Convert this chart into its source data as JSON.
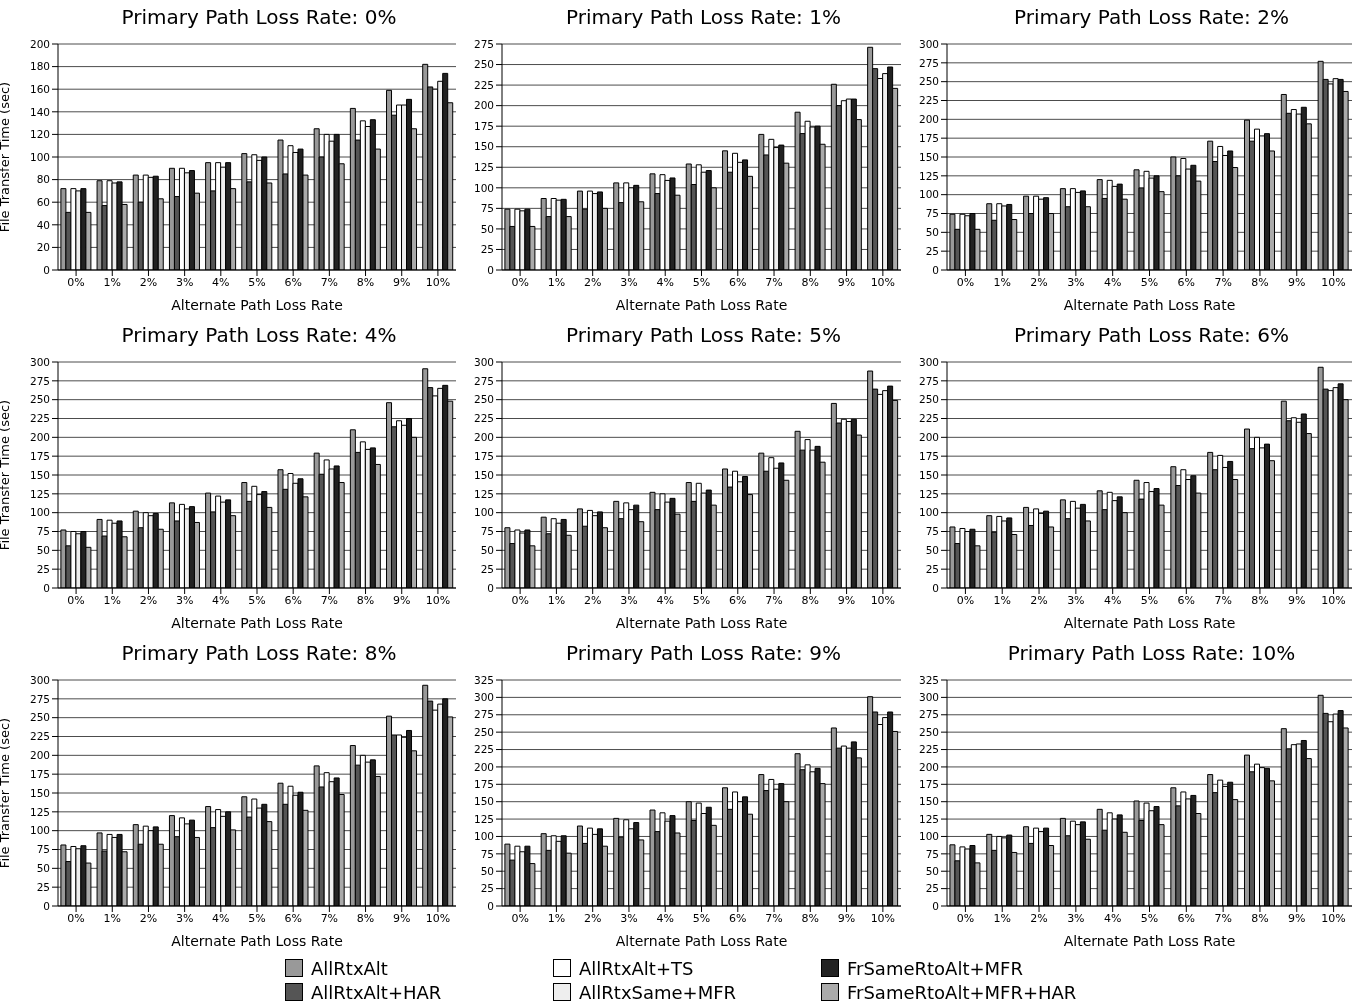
{
  "chart_data": [
    {
      "type": "bar",
      "title": "Primary Path Loss Rate: 0%",
      "xlabel": "Alternate Path Loss Rate",
      "ylabel": "File Transfer Time (sec)",
      "categories": [
        "0%",
        "1%",
        "2%",
        "3%",
        "4%",
        "5%",
        "6%",
        "7%",
        "8%",
        "9%",
        "10%"
      ],
      "ylim": [
        0,
        200
      ],
      "yticks": [
        0,
        20,
        40,
        60,
        80,
        100,
        120,
        140,
        160,
        180,
        200
      ],
      "grid": "y",
      "legend": "bottom",
      "series": [
        {
          "name": "AllRtxAlt",
          "color": "#999999",
          "values": [
            72,
            79,
            84,
            90,
            95,
            103,
            115,
            125,
            143,
            159,
            182
          ]
        },
        {
          "name": "AllRtxAlt+HAR",
          "color": "#555555",
          "values": [
            51,
            57,
            60,
            65,
            70,
            78,
            85,
            100,
            115,
            137,
            162
          ]
        },
        {
          "name": "AllRtxAlt+TS",
          "color": "#ffffff",
          "values": [
            72,
            79,
            84,
            90,
            95,
            102,
            110,
            120,
            132,
            146,
            160
          ]
        },
        {
          "name": "AllRtxSame+MFR",
          "color": "#eeeeee",
          "values": [
            70,
            77,
            82,
            86,
            91,
            97,
            104,
            114,
            127,
            146,
            167
          ]
        },
        {
          "name": "FrSameRtoAlt+MFR",
          "color": "#222222",
          "values": [
            72,
            78,
            83,
            88,
            95,
            100,
            107,
            120,
            133,
            151,
            174
          ]
        },
        {
          "name": "FrSameRtoAlt+MFR+HAR",
          "color": "#aaaaaa",
          "values": [
            51,
            58,
            63,
            68,
            72,
            77,
            84,
            94,
            107,
            125,
            148
          ]
        }
      ]
    },
    {
      "type": "bar",
      "title": "Primary Path Loss Rate: 1%",
      "xlabel": "Alternate Path Loss Rate",
      "categories": [
        "0%",
        "1%",
        "2%",
        "3%",
        "4%",
        "5%",
        "6%",
        "7%",
        "8%",
        "9%",
        "10%"
      ],
      "ylim": [
        0,
        275
      ],
      "yticks": [
        0,
        25,
        50,
        75,
        100,
        125,
        150,
        175,
        200,
        225,
        250,
        275
      ],
      "grid": "y",
      "series": [
        {
          "color": "#999999",
          "values": [
            74,
            87,
            96,
            106,
            117,
            129,
            145,
            165,
            192,
            226,
            271
          ]
        },
        {
          "color": "#555555",
          "values": [
            53,
            65,
            74,
            82,
            93,
            104,
            119,
            140,
            166,
            200,
            245
          ]
        },
        {
          "color": "#ffffff",
          "values": [
            74,
            87,
            96,
            106,
            116,
            128,
            142,
            159,
            181,
            206,
            233
          ]
        },
        {
          "color": "#eeeeee",
          "values": [
            72,
            85,
            93,
            100,
            109,
            119,
            131,
            149,
            174,
            208,
            239
          ]
        },
        {
          "color": "#222222",
          "values": [
            74,
            86,
            95,
            103,
            112,
            121,
            134,
            152,
            175,
            208,
            247
          ]
        },
        {
          "color": "#aaaaaa",
          "values": [
            53,
            65,
            75,
            83,
            91,
            100,
            114,
            130,
            153,
            183,
            221
          ]
        }
      ]
    },
    {
      "type": "bar",
      "title": "Primary Path Loss Rate: 2%",
      "xlabel": "Alternate Path Loss Rate",
      "categories": [
        "0%",
        "1%",
        "2%",
        "3%",
        "4%",
        "5%",
        "6%",
        "7%",
        "8%",
        "9%",
        "10%"
      ],
      "ylim": [
        0,
        300
      ],
      "yticks": [
        0,
        25,
        50,
        75,
        100,
        125,
        150,
        175,
        200,
        225,
        250,
        275,
        300
      ],
      "grid": "y",
      "series": [
        {
          "color": "#999999",
          "values": [
            74,
            88,
            98,
            108,
            120,
            133,
            150,
            171,
            199,
            233,
            277
          ]
        },
        {
          "color": "#555555",
          "values": [
            54,
            66,
            75,
            84,
            95,
            109,
            125,
            144,
            171,
            208,
            253
          ]
        },
        {
          "color": "#ffffff",
          "values": [
            74,
            88,
            98,
            108,
            119,
            131,
            148,
            164,
            187,
            213,
            247
          ]
        },
        {
          "color": "#eeeeee",
          "values": [
            72,
            85,
            94,
            103,
            111,
            122,
            134,
            152,
            178,
            207,
            254
          ]
        },
        {
          "color": "#222222",
          "values": [
            75,
            87,
            96,
            105,
            114,
            125,
            139,
            158,
            181,
            216,
            253
          ]
        },
        {
          "color": "#aaaaaa",
          "values": [
            54,
            67,
            75,
            84,
            94,
            104,
            118,
            136,
            158,
            194,
            237
          ]
        }
      ]
    },
    {
      "type": "bar",
      "title": "Primary Path Loss Rate: 4%",
      "xlabel": "Alternate Path Loss Rate",
      "ylabel": "File Transfer Time (sec)",
      "categories": [
        "0%",
        "1%",
        "2%",
        "3%",
        "4%",
        "5%",
        "6%",
        "7%",
        "8%",
        "9%",
        "10%"
      ],
      "ylim": [
        0,
        300
      ],
      "yticks": [
        0,
        25,
        50,
        75,
        100,
        125,
        150,
        175,
        200,
        225,
        250,
        275,
        300
      ],
      "grid": "y",
      "series": [
        {
          "color": "#999999",
          "values": [
            77,
            91,
            102,
            113,
            126,
            140,
            157,
            179,
            210,
            246,
            291
          ]
        },
        {
          "color": "#555555",
          "values": [
            56,
            69,
            80,
            89,
            101,
            115,
            131,
            151,
            180,
            214,
            266
          ]
        },
        {
          "color": "#ffffff",
          "values": [
            75,
            90,
            100,
            111,
            122,
            135,
            152,
            170,
            194,
            222,
            255
          ]
        },
        {
          "color": "#eeeeee",
          "values": [
            72,
            86,
            96,
            105,
            114,
            124,
            139,
            158,
            184,
            216,
            265
          ]
        },
        {
          "color": "#222222",
          "values": [
            75,
            89,
            99,
            108,
            117,
            128,
            145,
            162,
            186,
            225,
            269
          ]
        },
        {
          "color": "#aaaaaa",
          "values": [
            54,
            68,
            78,
            87,
            96,
            107,
            121,
            140,
            164,
            200,
            248
          ]
        }
      ]
    },
    {
      "type": "bar",
      "title": "Primary Path Loss Rate: 5%",
      "xlabel": "Alternate Path Loss Rate",
      "categories": [
        "0%",
        "1%",
        "2%",
        "3%",
        "4%",
        "5%",
        "6%",
        "7%",
        "8%",
        "9%",
        "10%"
      ],
      "ylim": [
        0,
        300
      ],
      "yticks": [
        0,
        25,
        50,
        75,
        100,
        125,
        150,
        175,
        200,
        225,
        250,
        275,
        300
      ],
      "grid": "y",
      "series": [
        {
          "color": "#999999",
          "values": [
            80,
            94,
            105,
            115,
            127,
            140,
            158,
            179,
            208,
            245,
            288
          ]
        },
        {
          "color": "#555555",
          "values": [
            59,
            72,
            82,
            92,
            104,
            115,
            134,
            155,
            183,
            219,
            264
          ]
        },
        {
          "color": "#ffffff",
          "values": [
            77,
            92,
            103,
            113,
            125,
            139,
            155,
            173,
            197,
            224,
            257
          ]
        },
        {
          "color": "#eeeeee",
          "values": [
            73,
            86,
            96,
            104,
            114,
            126,
            141,
            159,
            183,
            221,
            262
          ]
        },
        {
          "color": "#222222",
          "values": [
            77,
            91,
            101,
            110,
            119,
            130,
            148,
            166,
            188,
            224,
            268
          ]
        },
        {
          "color": "#aaaaaa",
          "values": [
            56,
            70,
            80,
            88,
            98,
            110,
            124,
            143,
            167,
            203,
            249
          ]
        }
      ]
    },
    {
      "type": "bar",
      "title": "Primary Path Loss Rate: 6%",
      "xlabel": "Alternate Path Loss Rate",
      "categories": [
        "0%",
        "1%",
        "2%",
        "3%",
        "4%",
        "5%",
        "6%",
        "7%",
        "8%",
        "9%",
        "10%"
      ],
      "ylim": [
        0,
        300
      ],
      "yticks": [
        0,
        25,
        50,
        75,
        100,
        125,
        150,
        175,
        200,
        225,
        250,
        275,
        300
      ],
      "grid": "y",
      "series": [
        {
          "color": "#999999",
          "values": [
            81,
            96,
            107,
            117,
            129,
            143,
            161,
            180,
            211,
            248,
            293
          ]
        },
        {
          "color": "#555555",
          "values": [
            59,
            74,
            83,
            92,
            104,
            118,
            136,
            157,
            185,
            222,
            264
          ]
        },
        {
          "color": "#ffffff",
          "values": [
            79,
            95,
            105,
            115,
            127,
            140,
            157,
            176,
            200,
            226,
            262
          ]
        },
        {
          "color": "#eeeeee",
          "values": [
            75,
            89,
            99,
            106,
            116,
            128,
            144,
            160,
            186,
            220,
            266
          ]
        },
        {
          "color": "#222222",
          "values": [
            78,
            93,
            102,
            111,
            121,
            132,
            149,
            168,
            191,
            231,
            271
          ]
        },
        {
          "color": "#aaaaaa",
          "values": [
            56,
            71,
            81,
            89,
            100,
            110,
            126,
            144,
            169,
            205,
            250
          ]
        }
      ]
    },
    {
      "type": "bar",
      "title": "Primary Path Loss Rate: 8%",
      "xlabel": "Alternate Path Loss Rate",
      "ylabel": "File Transfer Time (sec)",
      "categories": [
        "0%",
        "1%",
        "2%",
        "3%",
        "4%",
        "5%",
        "6%",
        "7%",
        "8%",
        "9%",
        "10%"
      ],
      "ylim": [
        0,
        300
      ],
      "yticks": [
        0,
        25,
        50,
        75,
        100,
        125,
        150,
        175,
        200,
        225,
        250,
        275,
        300
      ],
      "grid": "y",
      "series": [
        {
          "color": "#999999",
          "values": [
            81,
            97,
            108,
            120,
            132,
            145,
            163,
            186,
            213,
            252,
            293
          ]
        },
        {
          "color": "#555555",
          "values": [
            59,
            73,
            82,
            92,
            104,
            118,
            135,
            158,
            187,
            227,
            272
          ]
        },
        {
          "color": "#ffffff",
          "values": [
            79,
            95,
            106,
            117,
            128,
            142,
            159,
            177,
            200,
            227,
            260
          ]
        },
        {
          "color": "#eeeeee",
          "values": [
            76,
            91,
            100,
            109,
            119,
            130,
            147,
            165,
            191,
            224,
            268
          ]
        },
        {
          "color": "#222222",
          "values": [
            80,
            95,
            105,
            114,
            125,
            135,
            151,
            170,
            194,
            233,
            275
          ]
        },
        {
          "color": "#aaaaaa",
          "values": [
            57,
            72,
            82,
            91,
            101,
            112,
            127,
            148,
            172,
            206,
            251
          ]
        }
      ]
    },
    {
      "type": "bar",
      "title": "Primary Path Loss Rate: 9%",
      "xlabel": "Alternate Path Loss Rate",
      "categories": [
        "0%",
        "1%",
        "2%",
        "3%",
        "4%",
        "5%",
        "6%",
        "7%",
        "8%",
        "9%",
        "10%"
      ],
      "ylim": [
        0,
        325
      ],
      "yticks": [
        0,
        25,
        50,
        75,
        100,
        125,
        150,
        175,
        200,
        225,
        250,
        275,
        300,
        325
      ],
      "grid": "y",
      "series": [
        {
          "color": "#999999",
          "values": [
            89,
            104,
            115,
            126,
            138,
            150,
            170,
            189,
            219,
            256,
            301
          ]
        },
        {
          "color": "#555555",
          "values": [
            66,
            80,
            90,
            99,
            107,
            123,
            139,
            166,
            196,
            227,
            279
          ]
        },
        {
          "color": "#ffffff",
          "values": [
            86,
            101,
            112,
            124,
            134,
            148,
            164,
            182,
            203,
            230,
            261
          ]
        },
        {
          "color": "#eeeeee",
          "values": [
            78,
            93,
            103,
            111,
            122,
            133,
            150,
            168,
            193,
            227,
            271
          ]
        },
        {
          "color": "#222222",
          "values": [
            86,
            101,
            111,
            120,
            130,
            142,
            157,
            176,
            198,
            236,
            279
          ]
        },
        {
          "color": "#aaaaaa",
          "values": [
            61,
            76,
            86,
            95,
            105,
            116,
            132,
            150,
            176,
            213,
            251
          ]
        }
      ]
    },
    {
      "type": "bar",
      "title": "Primary Path Loss Rate: 10%",
      "xlabel": "Alternate Path Loss Rate",
      "categories": [
        "0%",
        "1%",
        "2%",
        "3%",
        "4%",
        "5%",
        "6%",
        "7%",
        "8%",
        "9%",
        "10%"
      ],
      "ylim": [
        0,
        325
      ],
      "yticks": [
        0,
        25,
        50,
        75,
        100,
        125,
        150,
        175,
        200,
        225,
        250,
        275,
        300,
        325
      ],
      "grid": "y",
      "series": [
        {
          "color": "#999999",
          "values": [
            88,
            103,
            114,
            126,
            139,
            151,
            170,
            189,
            217,
            255,
            303
          ]
        },
        {
          "color": "#555555",
          "values": [
            65,
            80,
            90,
            101,
            109,
            123,
            144,
            163,
            193,
            226,
            277
          ]
        },
        {
          "color": "#ffffff",
          "values": [
            85,
            100,
            112,
            122,
            134,
            148,
            164,
            181,
            204,
            232,
            265
          ]
        },
        {
          "color": "#eeeeee",
          "values": [
            82,
            98,
            107,
            117,
            125,
            137,
            154,
            172,
            199,
            233,
            276
          ]
        },
        {
          "color": "#222222",
          "values": [
            87,
            102,
            112,
            121,
            131,
            143,
            159,
            178,
            198,
            238,
            281
          ]
        },
        {
          "color": "#aaaaaa",
          "values": [
            62,
            77,
            87,
            96,
            106,
            117,
            133,
            153,
            180,
            212,
            256
          ]
        }
      ]
    }
  ]
}
